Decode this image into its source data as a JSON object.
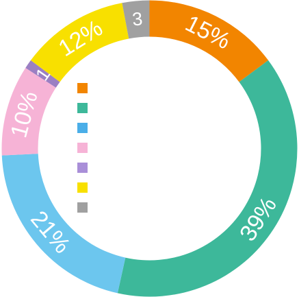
{
  "chart_data": {
    "type": "pie",
    "donut": true,
    "title": "",
    "slices": [
      {
        "name": "",
        "value": 15,
        "label": "15%",
        "color": "#f28500"
      },
      {
        "name": "",
        "value": 39,
        "label": "39%",
        "color": "#3db89a"
      },
      {
        "name": "",
        "value": 21,
        "label": "21%",
        "color": "#6cc6ee"
      },
      {
        "name": "",
        "value": 10,
        "label": "10%",
        "color": "#f6b3d6"
      },
      {
        "name": "",
        "value": 1,
        "label": "1",
        "color": "#9b7fc3"
      },
      {
        "name": "",
        "value": 12,
        "label": "12%",
        "color": "#f8e000"
      },
      {
        "name": "",
        "value": 3,
        "label": "3",
        "color": "#a0a0a0"
      }
    ],
    "legend": {
      "placement": "inside-center-left",
      "colors": [
        "#f28500",
        "#3db89a",
        "#4aaee8",
        "#f6b3d6",
        "#a98fd8",
        "#f8e000",
        "#a0a0a0"
      ]
    }
  }
}
